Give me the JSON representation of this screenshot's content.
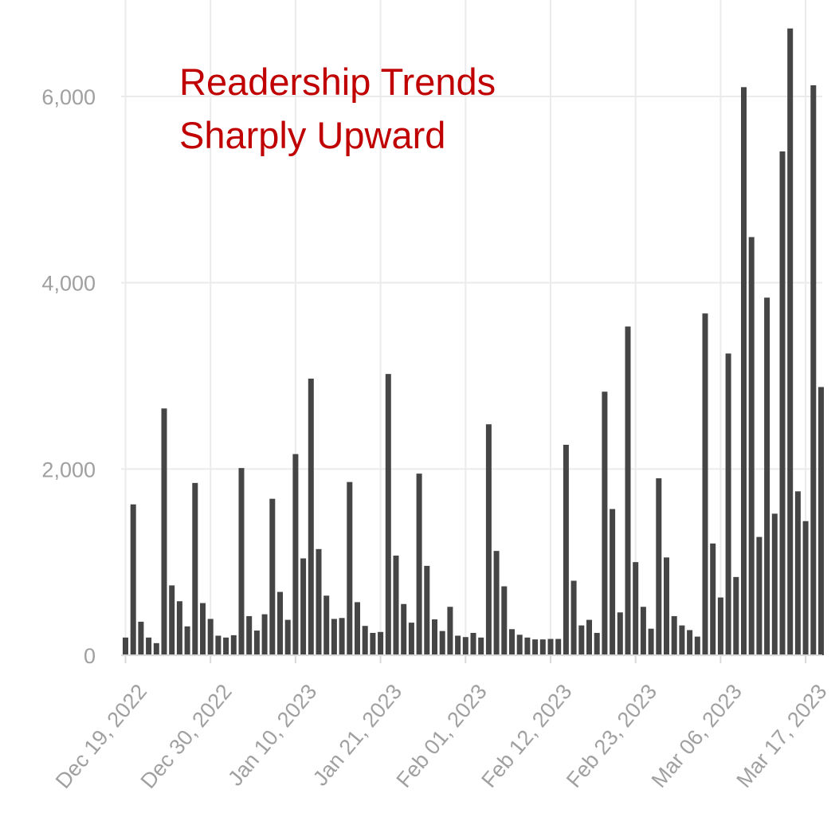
{
  "chart_data": {
    "type": "bar",
    "title_lines": [
      "Readership Trends",
      "Sharply Upward"
    ],
    "xlabel": "",
    "ylabel": "",
    "ylim": [
      0,
      6800
    ],
    "yticks": [
      0,
      2000,
      4000,
      6000
    ],
    "ytick_labels": [
      "0",
      "2,000",
      "4,000",
      "6,000"
    ],
    "xticks": [
      {
        "label": "Dec 19, 2022",
        "day": 0
      },
      {
        "label": "Dec 30, 2022",
        "day": 11
      },
      {
        "label": "Jan 10, 2023",
        "day": 22
      },
      {
        "label": "Jan 21, 2023",
        "day": 33
      },
      {
        "label": "Feb 01, 2023",
        "day": 44
      },
      {
        "label": "Feb 12, 2023",
        "day": 55
      },
      {
        "label": "Feb 23, 2023",
        "day": 66
      },
      {
        "label": "Mar 06, 2023",
        "day": 77
      },
      {
        "label": "Mar 17, 2023",
        "day": 88
      }
    ],
    "start_date": "2022-12-19",
    "grid": true,
    "bar_color": "#454545",
    "values": [
      190,
      1620,
      360,
      190,
      130,
      2650,
      750,
      580,
      310,
      1850,
      560,
      390,
      210,
      190,
      215,
      2010,
      420,
      265,
      440,
      1680,
      680,
      380,
      2160,
      1040,
      2970,
      1140,
      640,
      390,
      400,
      1860,
      570,
      315,
      240,
      250,
      3020,
      1070,
      550,
      350,
      1950,
      960,
      385,
      260,
      520,
      210,
      195,
      240,
      190,
      2480,
      1120,
      740,
      280,
      220,
      190,
      170,
      170,
      175,
      175,
      2260,
      800,
      320,
      380,
      240,
      2830,
      1570,
      460,
      3530,
      1000,
      520,
      285,
      1900,
      1050,
      420,
      320,
      270,
      200,
      3670,
      1200,
      620,
      3240,
      840,
      6100,
      4490,
      1270,
      3840,
      1520,
      5410,
      6730,
      1760,
      1440,
      6120,
      2880
    ]
  }
}
